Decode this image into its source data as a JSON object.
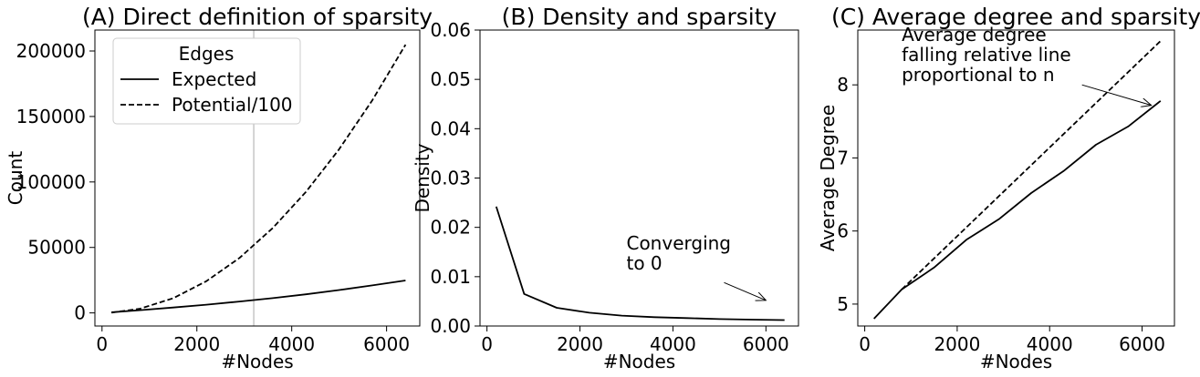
{
  "chart_data": [
    {
      "type": "line",
      "title": "(A) Direct definition of sparsity",
      "xlabel": "#Nodes",
      "ylabel": "Count",
      "xlim": [
        -150,
        6700
      ],
      "ylim": [
        -10000,
        216000
      ],
      "xticks": [
        0,
        2000,
        4000,
        6000
      ],
      "xtick_labels": [
        "0",
        "2000",
        "4000",
        "6000"
      ],
      "yticks": [
        0,
        50000,
        100000,
        150000,
        200000
      ],
      "ytick_labels": [
        "0",
        "50000",
        "100000",
        "150000",
        "200000"
      ],
      "vline_x": 3200,
      "legend": {
        "title": "Edges",
        "position": "top-left"
      },
      "x": [
        200,
        800,
        1500,
        2200,
        2900,
        3600,
        4300,
        5000,
        5700,
        6400
      ],
      "series": [
        {
          "name": "Expected",
          "style": "solid",
          "color": "#000000",
          "values": [
            500,
            2100,
            4100,
            6300,
            8700,
            11300,
            14200,
            17500,
            21000,
            24800
          ]
        },
        {
          "name": "Potential/100",
          "style": "dashed",
          "color": "#000000",
          "values": [
            200,
            3200,
            11200,
            24200,
            42000,
            64800,
            92400,
            125000,
            162400,
            204800
          ]
        }
      ]
    },
    {
      "type": "line",
      "title": "(B) Density and sparsity",
      "xlabel": "#Nodes",
      "ylabel": "Density",
      "xlim": [
        -150,
        6700
      ],
      "ylim": [
        0,
        0.06
      ],
      "xticks": [
        0,
        2000,
        4000,
        6000
      ],
      "xtick_labels": [
        "0",
        "2000",
        "4000",
        "6000"
      ],
      "yticks": [
        0,
        0.01,
        0.02,
        0.03,
        0.04,
        0.05,
        0.06
      ],
      "ytick_labels": [
        "0.00",
        "0.01",
        "0.02",
        "0.03",
        "0.04",
        "0.05",
        "0.06"
      ],
      "annotation": {
        "lines": [
          "Converging",
          "to 0"
        ],
        "text_x": 3000,
        "text_y": 0.0155,
        "arrow_from": [
          5100,
          0.0088
        ],
        "arrow_to": [
          6000,
          0.0052
        ]
      },
      "x": [
        200,
        800,
        1500,
        2200,
        2900,
        3600,
        4300,
        5000,
        5700,
        6400
      ],
      "series": [
        {
          "name": "",
          "style": "solid",
          "color": "#000000",
          "values": [
            0.0242,
            0.0065,
            0.0037,
            0.0027,
            0.0021,
            0.0018,
            0.0016,
            0.0014,
            0.0013,
            0.0012
          ]
        }
      ]
    },
    {
      "type": "line",
      "title": "(C) Average degree and sparsity",
      "xlabel": "#Nodes",
      "ylabel": "Average Degree",
      "xlim": [
        -150,
        6700
      ],
      "ylim": [
        4.7,
        8.75
      ],
      "xticks": [
        0,
        2000,
        4000,
        6000
      ],
      "xtick_labels": [
        "0",
        "2000",
        "4000",
        "6000"
      ],
      "yticks": [
        5,
        6,
        7,
        8
      ],
      "ytick_labels": [
        "5",
        "6",
        "7",
        "8"
      ],
      "annotation": {
        "lines": [
          "Average degree",
          "falling relative line",
          " proportional to n"
        ],
        "text_x": 800,
        "text_y": 8.6,
        "arrow_from": [
          4700,
          8.0
        ],
        "arrow_to": [
          6200,
          7.72
        ]
      },
      "x": [
        200,
        800,
        1500,
        2200,
        2900,
        3600,
        4300,
        5000,
        5700,
        6400
      ],
      "series": [
        {
          "name": "",
          "style": "solid",
          "color": "#000000",
          "values": [
            4.8,
            5.2,
            5.5,
            5.88,
            6.16,
            6.52,
            6.82,
            7.18,
            7.43,
            7.78
          ]
        },
        {
          "name": "",
          "style": "dashed",
          "color": "#000000",
          "x": [
            800,
            6400
          ],
          "values": [
            5.2,
            8.6
          ]
        }
      ]
    }
  ]
}
